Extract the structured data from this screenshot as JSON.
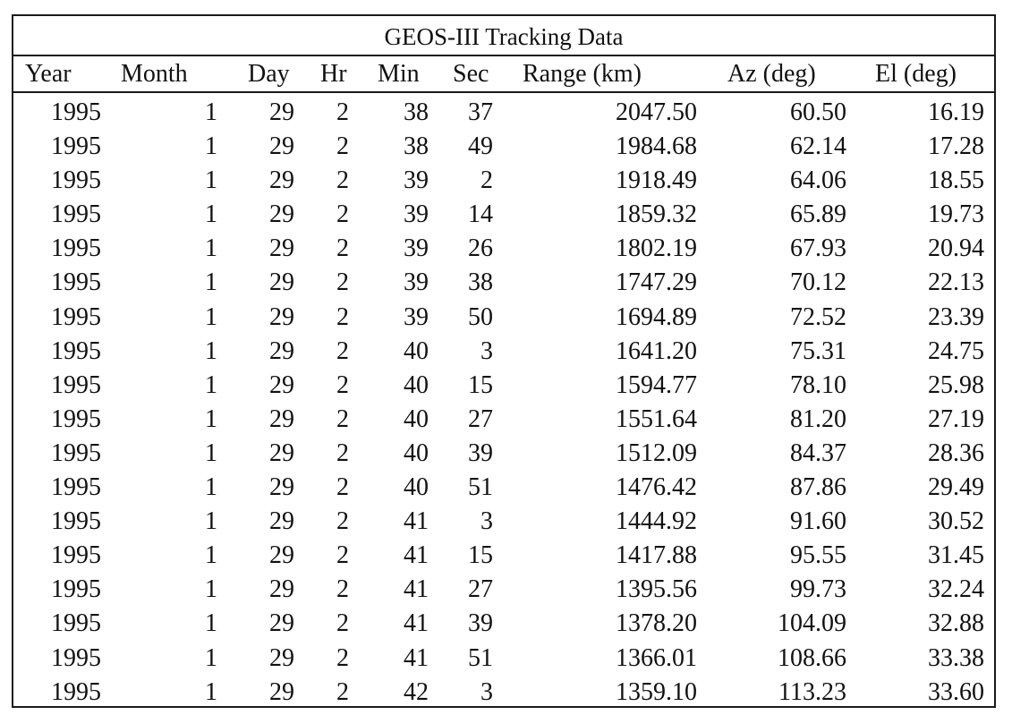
{
  "table": {
    "title": "GEOS-III Tracking Data",
    "columns": [
      "Year",
      "Month",
      "Day",
      "Hr",
      "Min",
      "Sec",
      "Range (km)",
      "Az (deg)",
      "El (deg)"
    ],
    "rows": [
      [
        "1995",
        "1",
        "29",
        "2",
        "38",
        "37",
        "2047.50",
        "60.50",
        "16.19"
      ],
      [
        "1995",
        "1",
        "29",
        "2",
        "38",
        "49",
        "1984.68",
        "62.14",
        "17.28"
      ],
      [
        "1995",
        "1",
        "29",
        "2",
        "39",
        "2",
        "1918.49",
        "64.06",
        "18.55"
      ],
      [
        "1995",
        "1",
        "29",
        "2",
        "39",
        "14",
        "1859.32",
        "65.89",
        "19.73"
      ],
      [
        "1995",
        "1",
        "29",
        "2",
        "39",
        "26",
        "1802.19",
        "67.93",
        "20.94"
      ],
      [
        "1995",
        "1",
        "29",
        "2",
        "39",
        "38",
        "1747.29",
        "70.12",
        "22.13"
      ],
      [
        "1995",
        "1",
        "29",
        "2",
        "39",
        "50",
        "1694.89",
        "72.52",
        "23.39"
      ],
      [
        "1995",
        "1",
        "29",
        "2",
        "40",
        "3",
        "1641.20",
        "75.31",
        "24.75"
      ],
      [
        "1995",
        "1",
        "29",
        "2",
        "40",
        "15",
        "1594.77",
        "78.10",
        "25.98"
      ],
      [
        "1995",
        "1",
        "29",
        "2",
        "40",
        "27",
        "1551.64",
        "81.20",
        "27.19"
      ],
      [
        "1995",
        "1",
        "29",
        "2",
        "40",
        "39",
        "1512.09",
        "84.37",
        "28.36"
      ],
      [
        "1995",
        "1",
        "29",
        "2",
        "40",
        "51",
        "1476.42",
        "87.86",
        "29.49"
      ],
      [
        "1995",
        "1",
        "29",
        "2",
        "41",
        "3",
        "1444.92",
        "91.60",
        "30.52"
      ],
      [
        "1995",
        "1",
        "29",
        "2",
        "41",
        "15",
        "1417.88",
        "95.55",
        "31.45"
      ],
      [
        "1995",
        "1",
        "29",
        "2",
        "41",
        "27",
        "1395.56",
        "99.73",
        "32.24"
      ],
      [
        "1995",
        "1",
        "29",
        "2",
        "41",
        "39",
        "1378.20",
        "104.09",
        "32.88"
      ],
      [
        "1995",
        "1",
        "29",
        "2",
        "41",
        "51",
        "1366.01",
        "108.66",
        "33.38"
      ],
      [
        "1995",
        "1",
        "29",
        "2",
        "42",
        "3",
        "1359.10",
        "113.23",
        "33.60"
      ]
    ]
  }
}
